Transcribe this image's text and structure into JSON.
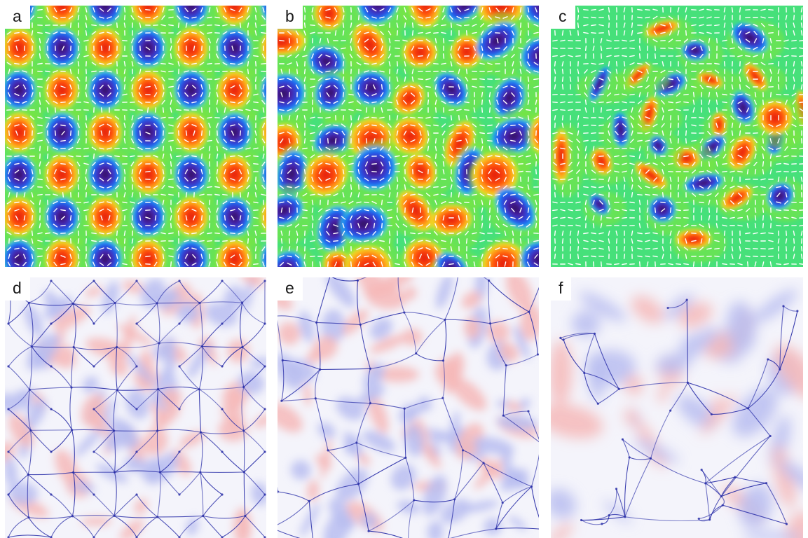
{
  "figure": {
    "panels": [
      {
        "label": "a",
        "kind": "heatmap",
        "pattern": "square-lattice"
      },
      {
        "label": "b",
        "kind": "heatmap",
        "pattern": "disordered-lattice"
      },
      {
        "label": "c",
        "kind": "heatmap",
        "pattern": "swirl"
      },
      {
        "label": "d",
        "kind": "defect-map",
        "pattern": "lattice-network"
      },
      {
        "label": "e",
        "kind": "defect-map",
        "pattern": "disordered-network"
      },
      {
        "label": "f",
        "kind": "defect-map",
        "pattern": "coarse-network"
      }
    ],
    "heatmap_colorscale": [
      "#2b0f50",
      "#4b1fa6",
      "#1f5cf2",
      "#22c8f0",
      "#46e07a",
      "#2fd8a0",
      "#7fe63a",
      "#e8ec2a",
      "#ffa81a",
      "#ff4a0d",
      "#e01a0a"
    ],
    "defect_colors": {
      "background": "#f4f4fb",
      "positive": "#f6b8b8",
      "negative": "#b9bdf0",
      "line": "#2a2fa8"
    },
    "vector_color": "#ffffff"
  }
}
